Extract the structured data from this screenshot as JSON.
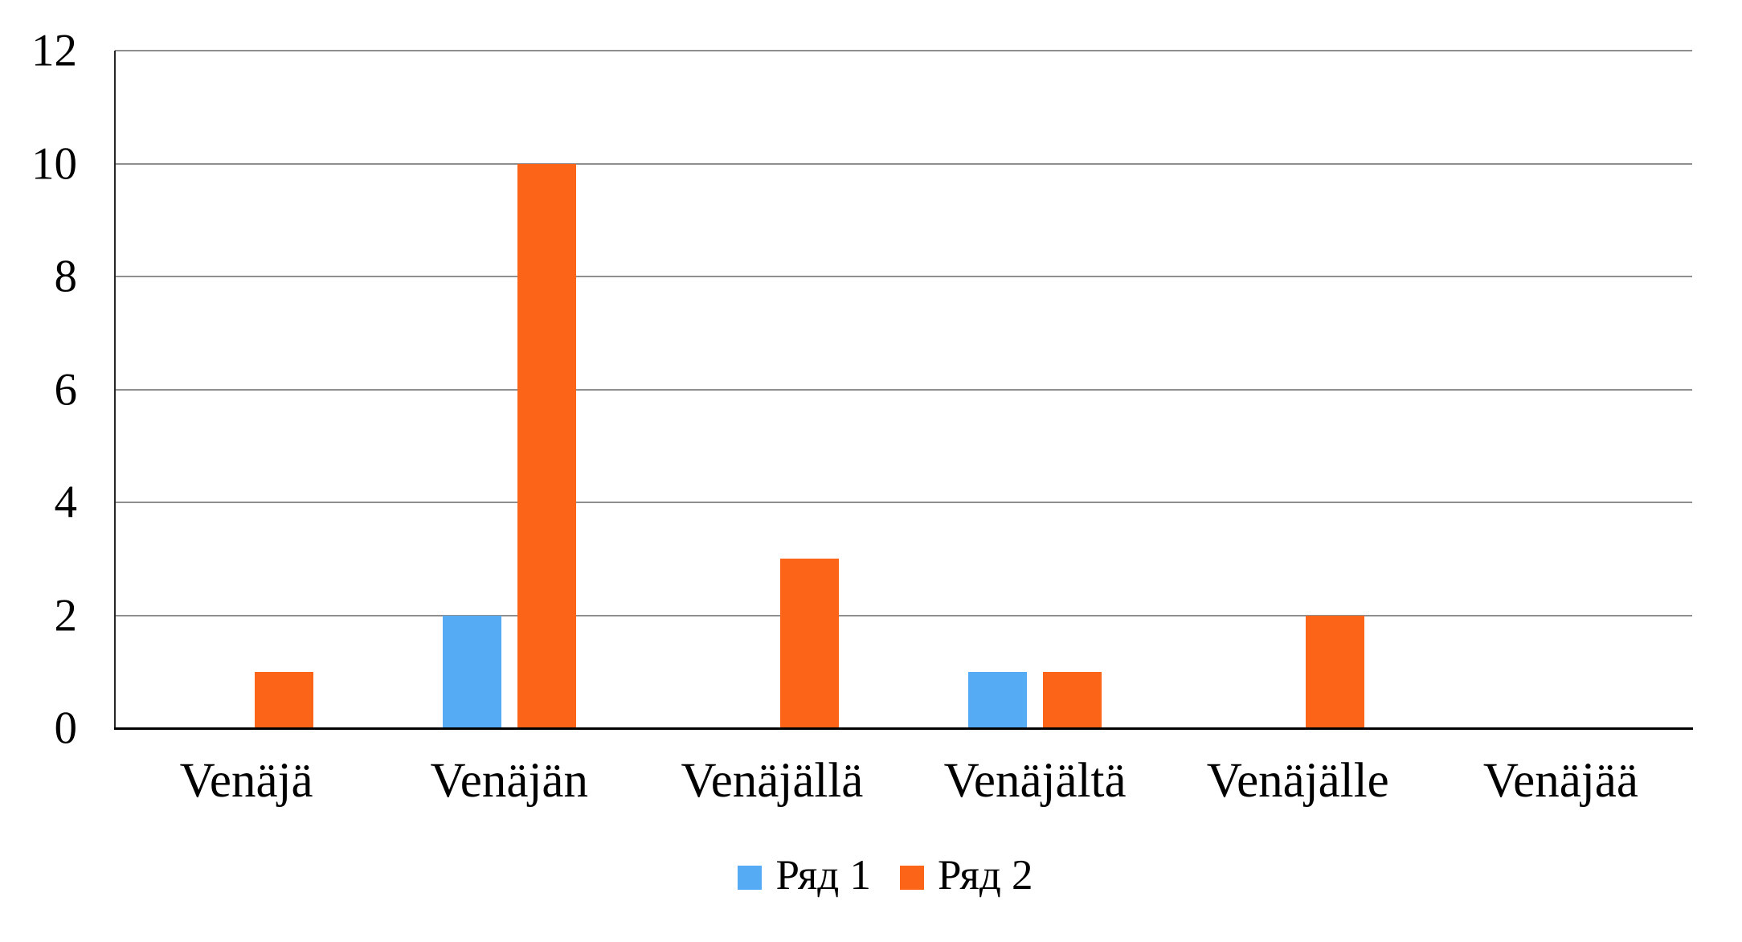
{
  "chart_data": {
    "type": "bar",
    "title": "",
    "xlabel": "",
    "ylabel": "",
    "categories": [
      "Venäjä",
      "Venäjän",
      "Venäjällä",
      "Venäjältä",
      "Venäjälle",
      "Venäjää"
    ],
    "series": [
      {
        "name": "Ряд 1",
        "color": "#55ACF5",
        "values": [
          0,
          2,
          0,
          1,
          0,
          0
        ]
      },
      {
        "name": "Ряд 2",
        "color": "#FC6418",
        "values": [
          1,
          10,
          3,
          1,
          2,
          0
        ]
      }
    ],
    "ylim": [
      0,
      12
    ],
    "yticks": [
      0,
      2,
      4,
      6,
      8,
      10,
      12
    ],
    "grid": true,
    "legend_position": "bottom"
  },
  "styles": {
    "gridline_color": "#8f8f8f",
    "axis_line_color": "#262626",
    "baseline_color": "#000000",
    "text_color": "#000000",
    "background": "#ffffff"
  }
}
